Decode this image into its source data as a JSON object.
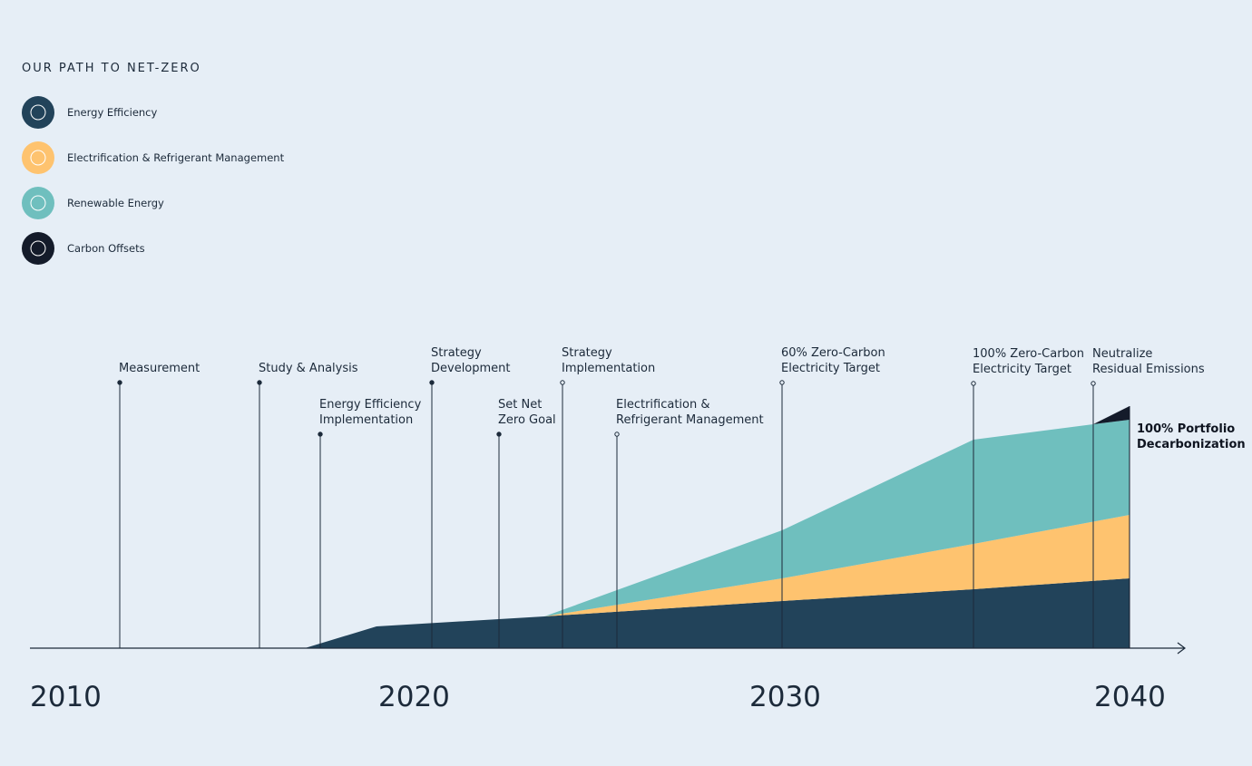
{
  "title": "OUR PATH TO NET-ZERO",
  "legend": [
    {
      "label": "Energy Efficiency",
      "color": "#22435a"
    },
    {
      "label": "Electrification & Refrigerant Management",
      "color": "#fec36f"
    },
    {
      "label": "Renewable Energy",
      "color": "#6fbfbe"
    },
    {
      "label": "Carbon Offsets",
      "color": "#141b2a"
    }
  ],
  "milestones": [
    {
      "lines": [
        "Measurement"
      ]
    },
    {
      "lines": [
        "Study & Analysis"
      ]
    },
    {
      "lines": [
        "Energy Efficiency",
        "Implementation"
      ]
    },
    {
      "lines": [
        "Strategy",
        "Development"
      ]
    },
    {
      "lines": [
        "Set Net",
        "Zero Goal"
      ]
    },
    {
      "lines": [
        "Strategy",
        "Implementation"
      ]
    },
    {
      "lines": [
        "Electrification &",
        "Refrigerant Management"
      ]
    },
    {
      "lines": [
        "60% Zero-Carbon",
        "Electricity Target"
      ]
    },
    {
      "lines": [
        "100% Zero-Carbon",
        "Electricity Target"
      ]
    },
    {
      "lines": [
        "Neutralize",
        "Residual Emissions"
      ]
    }
  ],
  "years": [
    "2010",
    "2020",
    "2030",
    "2040"
  ],
  "final_label": [
    "100% Portfolio",
    "Decarbonization"
  ]
}
